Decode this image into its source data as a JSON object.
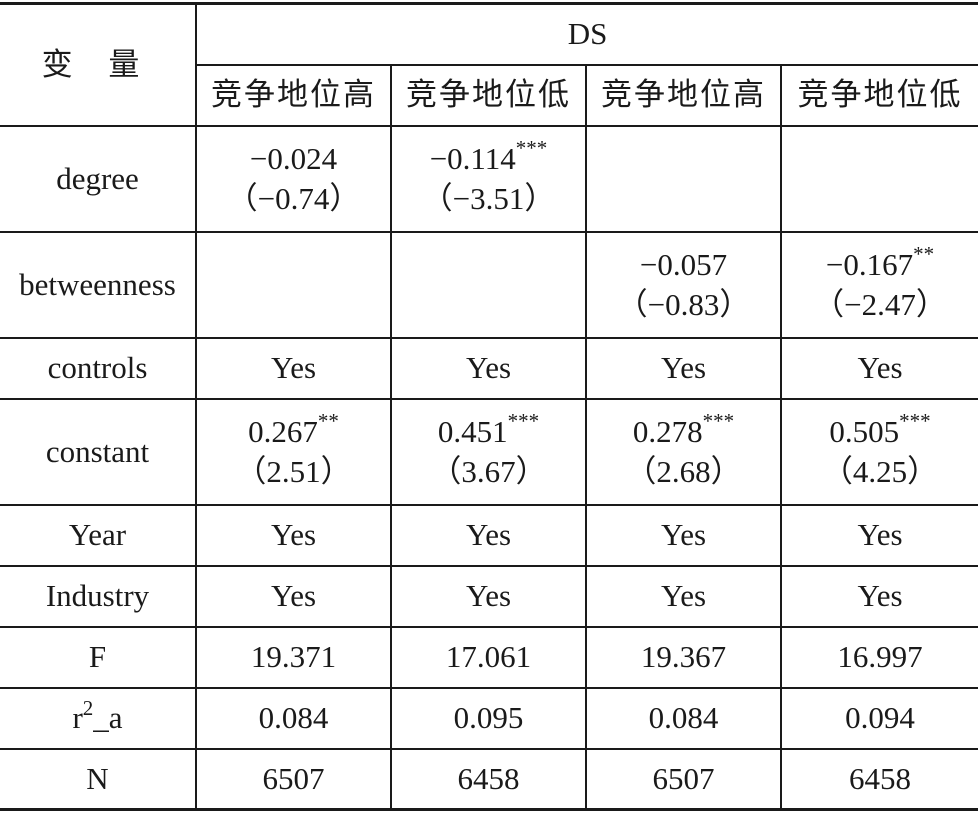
{
  "table": {
    "var_header": "变 量",
    "group_header": "DS",
    "col_headers": [
      "竞争地位高",
      "竞争地位低",
      "竞争地位高",
      "竞争地位低"
    ],
    "rows": [
      {
        "label": "degree",
        "cells": [
          {
            "value": "−0.024",
            "stars": "",
            "t": "（−0.74）"
          },
          {
            "value": "−0.114",
            "stars": "***",
            "t": "（−3.51）"
          },
          {
            "value": "",
            "stars": "",
            "t": ""
          },
          {
            "value": "",
            "stars": "",
            "t": ""
          }
        ]
      },
      {
        "label": "betweenness",
        "cells": [
          {
            "value": "",
            "stars": "",
            "t": ""
          },
          {
            "value": "",
            "stars": "",
            "t": ""
          },
          {
            "value": "−0.057",
            "stars": "",
            "t": "（−0.83）"
          },
          {
            "value": "−0.167",
            "stars": "**",
            "t": "（−2.47）"
          }
        ]
      },
      {
        "label": "controls",
        "cells": [
          {
            "value": "Yes"
          },
          {
            "value": "Yes"
          },
          {
            "value": "Yes"
          },
          {
            "value": "Yes"
          }
        ]
      },
      {
        "label": "constant",
        "cells": [
          {
            "value": "0.267",
            "stars": "**",
            "t": "（2.51）"
          },
          {
            "value": "0.451",
            "stars": "***",
            "t": "（3.67）"
          },
          {
            "value": "0.278",
            "stars": "***",
            "t": "（2.68）"
          },
          {
            "value": "0.505",
            "stars": "***",
            "t": "（4.25）"
          }
        ]
      },
      {
        "label": "Year",
        "cells": [
          {
            "value": "Yes"
          },
          {
            "value": "Yes"
          },
          {
            "value": "Yes"
          },
          {
            "value": "Yes"
          }
        ]
      },
      {
        "label": "Industry",
        "cells": [
          {
            "value": "Yes"
          },
          {
            "value": "Yes"
          },
          {
            "value": "Yes"
          },
          {
            "value": "Yes"
          }
        ]
      },
      {
        "label": "F",
        "cells": [
          {
            "value": "19.371"
          },
          {
            "value": "17.061"
          },
          {
            "value": "19.367"
          },
          {
            "value": "16.997"
          }
        ]
      },
      {
        "label_base": "r",
        "label_sup": "2",
        "label_tail": "_a",
        "cells": [
          {
            "value": "0.084"
          },
          {
            "value": "0.095"
          },
          {
            "value": "0.084"
          },
          {
            "value": "0.094"
          }
        ]
      },
      {
        "label": "N",
        "cells": [
          {
            "value": "6507"
          },
          {
            "value": "6458"
          },
          {
            "value": "6507"
          },
          {
            "value": "6458"
          }
        ]
      }
    ]
  }
}
